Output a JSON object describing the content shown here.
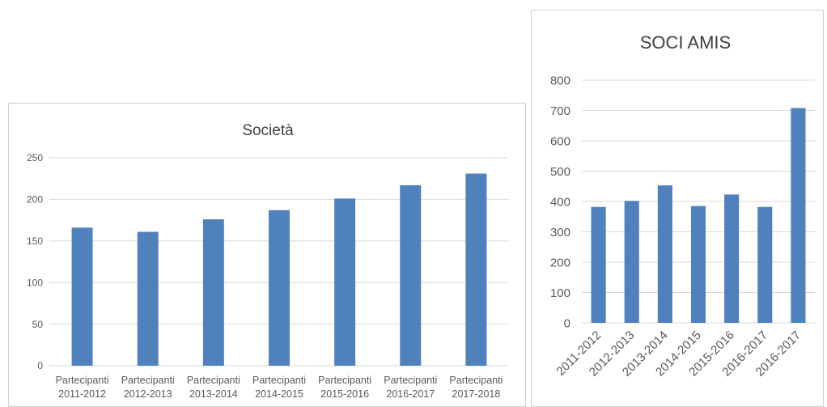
{
  "chart_data": [
    {
      "type": "bar",
      "title": "Società",
      "categories": [
        [
          "Partecipanti",
          "2011-2012"
        ],
        [
          "Partecipanti",
          "2012-2013"
        ],
        [
          "Partecipanti",
          "2013-2014"
        ],
        [
          "Partecipanti",
          "2014-2015"
        ],
        [
          "Partecipanti",
          "2015-2016"
        ],
        [
          "Partecipanti",
          "2016-2017"
        ],
        [
          "Partecipanti",
          "2017-2018"
        ]
      ],
      "values": [
        166,
        161,
        176,
        187,
        201,
        217,
        231
      ],
      "ylim": [
        0,
        250
      ],
      "yticks": [
        0,
        50,
        100,
        150,
        200,
        250
      ],
      "grid": true,
      "bar_color": "#4f81bd"
    },
    {
      "type": "bar",
      "title": "SOCI AMIS",
      "categories": [
        "2011-2012",
        "2012-2013",
        "2013-2014",
        "2014-2015",
        "2015-2016",
        "2016-2017",
        "2016-2017"
      ],
      "values": [
        382,
        402,
        453,
        385,
        423,
        382,
        708
      ],
      "ylim": [
        0,
        800
      ],
      "yticks": [
        0,
        100,
        200,
        300,
        400,
        500,
        600,
        700,
        800
      ],
      "grid": true,
      "bar_color": "#4f81bd"
    }
  ]
}
